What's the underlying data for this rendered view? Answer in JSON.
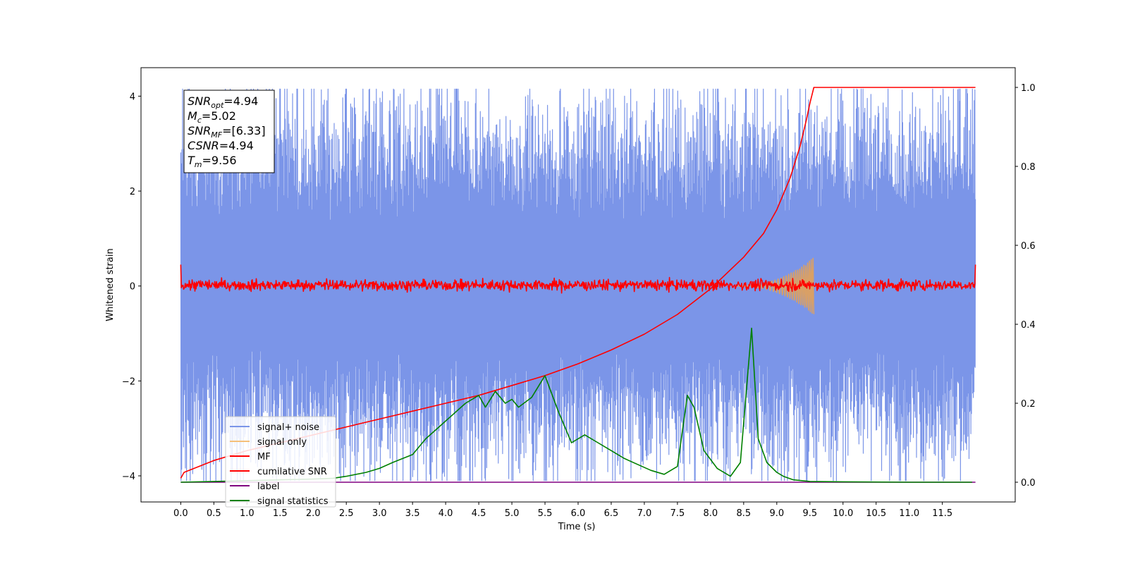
{
  "chart_data": {
    "type": "line",
    "xlabel": "Time (s)",
    "ylabel": "Whitened strain",
    "xlim": [
      -0.6,
      12.6
    ],
    "ylim_left": [
      -4.55,
      4.6
    ],
    "ylim_right": [
      -0.05,
      1.05
    ],
    "x_ticks": [
      "0.0",
      "0.5",
      "1.0",
      "1.5",
      "2.0",
      "2.5",
      "3.0",
      "3.5",
      "4.0",
      "4.5",
      "5.0",
      "5.5",
      "6.0",
      "6.5",
      "7.0",
      "7.5",
      "8.0",
      "8.5",
      "9.0",
      "9.5",
      "10.0",
      "10.5",
      "11.0",
      "11.5"
    ],
    "y_ticks_left": [
      "4",
      "2",
      "0",
      "−2",
      "−4"
    ],
    "y_ticks_right": [
      "1.0",
      "0.8",
      "0.6",
      "0.4",
      "0.2",
      "0.0"
    ],
    "info_box": {
      "snr_opt": "=4.94",
      "mc": "=5.02",
      "snr_mf": "=[6.33]",
      "csnr": "=4.94",
      "tm": "=9.56"
    },
    "legend": [
      {
        "label": "signal+ noise",
        "color": "#7b95e8"
      },
      {
        "label": "signal only",
        "color": "#f5c07a"
      },
      {
        "label": "MF",
        "color": "#ff0000"
      },
      {
        "label": "cumilative SNR",
        "color": "#ff0000"
      },
      {
        "label": "label",
        "color": "#800080"
      },
      {
        "label": "signal statistics",
        "color": "#008000"
      }
    ],
    "series": [
      {
        "name": "signal+ noise",
        "axis": "left",
        "style": "noise",
        "x_range": [
          0.0,
          12.0
        ],
        "amplitude_envelope": [
          -4.1,
          4.15
        ],
        "color": "#7b95e8"
      },
      {
        "name": "signal only",
        "axis": "left",
        "style": "chirp",
        "x_range": [
          8.4,
          9.56
        ],
        "peak_amplitude": 0.6,
        "color": "#d9a066"
      },
      {
        "name": "MF",
        "axis": "left",
        "style": "noise",
        "x_range": [
          0.0,
          12.0
        ],
        "amplitude_envelope": [
          -0.25,
          0.45
        ],
        "color": "#ff0000"
      },
      {
        "name": "cumilative SNR",
        "axis": "right",
        "color": "#ff0000",
        "x": [
          0.0,
          0.05,
          0.5,
          1.0,
          1.5,
          2.0,
          2.5,
          3.0,
          3.5,
          4.0,
          4.5,
          5.0,
          5.5,
          6.0,
          6.5,
          7.0,
          7.5,
          8.0,
          8.5,
          8.8,
          9.0,
          9.2,
          9.35,
          9.45,
          9.5,
          9.56,
          12.0
        ],
        "values": [
          0.01,
          0.025,
          0.055,
          0.08,
          0.1,
          0.12,
          0.14,
          0.16,
          0.18,
          0.2,
          0.22,
          0.245,
          0.27,
          0.3,
          0.335,
          0.375,
          0.425,
          0.49,
          0.57,
          0.63,
          0.69,
          0.77,
          0.85,
          0.92,
          0.96,
          1.0,
          1.0
        ]
      },
      {
        "name": "label",
        "axis": "right",
        "color": "#800080",
        "x": [
          0.0,
          12.0
        ],
        "values": [
          0.0,
          0.0
        ]
      },
      {
        "name": "signal statistics",
        "axis": "right",
        "color": "#008000",
        "x": [
          0.0,
          0.5,
          1.0,
          1.5,
          2.0,
          2.3,
          2.5,
          2.8,
          3.0,
          3.2,
          3.5,
          3.7,
          3.9,
          4.1,
          4.3,
          4.5,
          4.6,
          4.75,
          4.9,
          5.0,
          5.1,
          5.3,
          5.5,
          5.7,
          5.9,
          6.1,
          6.3,
          6.5,
          6.7,
          6.9,
          7.1,
          7.3,
          7.5,
          7.65,
          7.75,
          7.9,
          8.1,
          8.3,
          8.45,
          8.55,
          8.62,
          8.72,
          8.85,
          9.0,
          9.1,
          9.25,
          9.5,
          10.0,
          11.0,
          11.95
        ],
        "values": [
          0.0,
          0.002,
          0.004,
          0.006,
          0.008,
          0.01,
          0.015,
          0.025,
          0.035,
          0.05,
          0.07,
          0.11,
          0.14,
          0.17,
          0.2,
          0.22,
          0.19,
          0.23,
          0.2,
          0.21,
          0.19,
          0.215,
          0.27,
          0.18,
          0.1,
          0.12,
          0.1,
          0.08,
          0.06,
          0.045,
          0.03,
          0.02,
          0.04,
          0.22,
          0.19,
          0.08,
          0.035,
          0.015,
          0.05,
          0.25,
          0.39,
          0.11,
          0.05,
          0.025,
          0.015,
          0.006,
          0.002,
          0.001,
          0.0,
          0.0
        ]
      }
    ]
  }
}
